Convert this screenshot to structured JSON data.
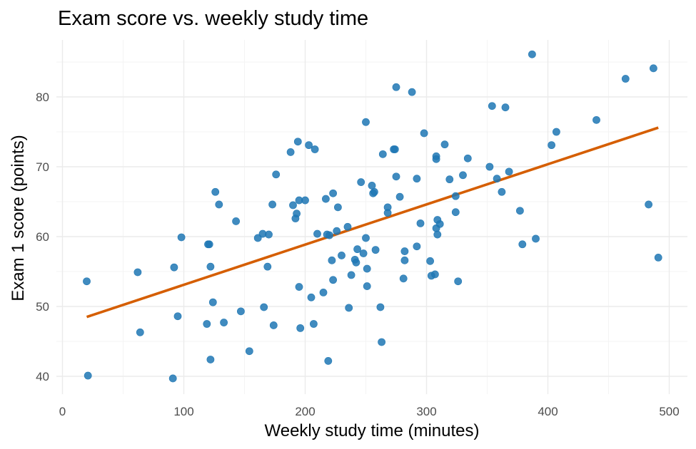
{
  "chart_data": {
    "type": "scatter",
    "title": "Exam score vs. weekly study time",
    "xlabel": "Weekly study time (minutes)",
    "ylabel": "Exam 1 score (points)",
    "xlim": [
      0,
      510
    ],
    "ylim": [
      38,
      87.5
    ],
    "x_ticks": [
      0,
      100,
      200,
      300,
      400,
      500
    ],
    "y_ticks": [
      40,
      50,
      60,
      70,
      80
    ],
    "grid": true,
    "colors": {
      "points": "#1f77b4",
      "trend": "#d55e00"
    },
    "trend_line": {
      "x": [
        20,
        491
      ],
      "y": [
        48.5,
        75.6
      ]
    },
    "points": [
      [
        20,
        53.6
      ],
      [
        21,
        40.1
      ],
      [
        62,
        54.9
      ],
      [
        64,
        46.3
      ],
      [
        91,
        39.7
      ],
      [
        92,
        55.6
      ],
      [
        95,
        48.6
      ],
      [
        98,
        59.9
      ],
      [
        119,
        47.5
      ],
      [
        120,
        58.9
      ],
      [
        121,
        58.9
      ],
      [
        122,
        42.4
      ],
      [
        122,
        55.7
      ],
      [
        124,
        50.6
      ],
      [
        126,
        66.4
      ],
      [
        129,
        64.6
      ],
      [
        133,
        47.7
      ],
      [
        143,
        62.2
      ],
      [
        147,
        49.3
      ],
      [
        154,
        43.6
      ],
      [
        161,
        59.8
      ],
      [
        165,
        60.4
      ],
      [
        166,
        49.9
      ],
      [
        169,
        55.7
      ],
      [
        170,
        60.3
      ],
      [
        173,
        64.6
      ],
      [
        174,
        47.3
      ],
      [
        176,
        68.9
      ],
      [
        188,
        72.1
      ],
      [
        190,
        64.5
      ],
      [
        192,
        62.6
      ],
      [
        193,
        63.3
      ],
      [
        194,
        73.6
      ],
      [
        195,
        52.8
      ],
      [
        195,
        65.2
      ],
      [
        196,
        46.9
      ],
      [
        200,
        65.2
      ],
      [
        203,
        73.1
      ],
      [
        205,
        51.3
      ],
      [
        207,
        47.5
      ],
      [
        208,
        72.5
      ],
      [
        210,
        60.4
      ],
      [
        215,
        52.0
      ],
      [
        217,
        65.4
      ],
      [
        218,
        60.3
      ],
      [
        219,
        42.2
      ],
      [
        220,
        60.2
      ],
      [
        222,
        56.6
      ],
      [
        223,
        53.8
      ],
      [
        223,
        66.2
      ],
      [
        226,
        60.8
      ],
      [
        227,
        64.2
      ],
      [
        230,
        57.3
      ],
      [
        235,
        61.4
      ],
      [
        236,
        49.8
      ],
      [
        238,
        54.5
      ],
      [
        241,
        56.7
      ],
      [
        242,
        56.3
      ],
      [
        243,
        58.2
      ],
      [
        246,
        67.8
      ],
      [
        248,
        57.6
      ],
      [
        250,
        76.4
      ],
      [
        250,
        59.8
      ],
      [
        251,
        55.4
      ],
      [
        251,
        52.9
      ],
      [
        255,
        67.3
      ],
      [
        256,
        66.2
      ],
      [
        257,
        66.4
      ],
      [
        258,
        58.1
      ],
      [
        262,
        49.9
      ],
      [
        263,
        44.9
      ],
      [
        264,
        71.8
      ],
      [
        268,
        63.4
      ],
      [
        268,
        64.2
      ],
      [
        273,
        72.5
      ],
      [
        274,
        72.5
      ],
      [
        275,
        81.4
      ],
      [
        275,
        68.6
      ],
      [
        278,
        65.7
      ],
      [
        281,
        54.0
      ],
      [
        282,
        57.9
      ],
      [
        282,
        56.6
      ],
      [
        288,
        80.7
      ],
      [
        292,
        58.6
      ],
      [
        292,
        68.3
      ],
      [
        295,
        61.9
      ],
      [
        298,
        74.8
      ],
      [
        303,
        56.5
      ],
      [
        304,
        54.4
      ],
      [
        307,
        54.6
      ],
      [
        308,
        71.5
      ],
      [
        308,
        71.1
      ],
      [
        308,
        61.2
      ],
      [
        309,
        60.3
      ],
      [
        309,
        62.4
      ],
      [
        311,
        61.8
      ],
      [
        315,
        73.2
      ],
      [
        319,
        68.2
      ],
      [
        324,
        65.8
      ],
      [
        324,
        63.5
      ],
      [
        326,
        53.6
      ],
      [
        330,
        68.8
      ],
      [
        334,
        71.2
      ],
      [
        352,
        70.0
      ],
      [
        354,
        78.7
      ],
      [
        358,
        68.3
      ],
      [
        362,
        66.4
      ],
      [
        365,
        78.5
      ],
      [
        368,
        69.3
      ],
      [
        377,
        63.7
      ],
      [
        379,
        58.9
      ],
      [
        387,
        86.1
      ],
      [
        390,
        59.7
      ],
      [
        403,
        73.1
      ],
      [
        407,
        75.0
      ],
      [
        440,
        76.7
      ],
      [
        464,
        82.6
      ],
      [
        483,
        64.6
      ],
      [
        487,
        84.1
      ],
      [
        491,
        57.0
      ]
    ]
  }
}
